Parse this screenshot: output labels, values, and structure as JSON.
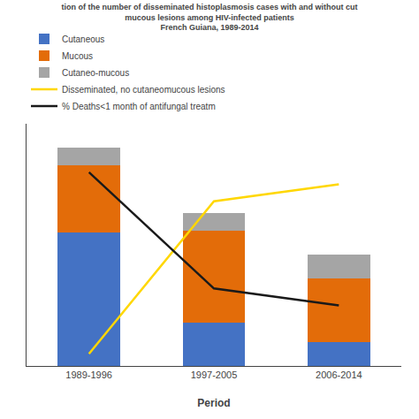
{
  "chart_data": {
    "type": "bar",
    "stacked": true,
    "title": [
      "tion of the number of disseminated histoplasmosis cases with and without cut",
      "mucous lesions among HIV-infected patients",
      "French Guiana, 1989-2014"
    ],
    "xlabel": "Period",
    "categories": [
      "1989-1996",
      "1997-2005",
      "2006-2014"
    ],
    "series": [
      {
        "name": "Cutaneous",
        "color": "#4472C4",
        "values": [
          55,
          18,
          10
        ]
      },
      {
        "name": "Mucous",
        "color": "#E36C09",
        "values": [
          28,
          38,
          26
        ]
      },
      {
        "name": "Cutaneo-mucous",
        "color": "#A5A5A5",
        "values": [
          7,
          7,
          10
        ]
      },
      {
        "name": "Disseminated, no cutaneomucous lesions",
        "type": "line",
        "color": "#FFD700",
        "values": [
          5,
          68,
          75
        ]
      },
      {
        "name": "% Deaths<1 month of antifungal treatm",
        "type": "line",
        "color": "#1A1A1A",
        "values": [
          80,
          32,
          25
        ]
      }
    ],
    "ylim": [
      0,
      100
    ],
    "grid": false,
    "tick_labels": "x",
    "legend": "top"
  }
}
